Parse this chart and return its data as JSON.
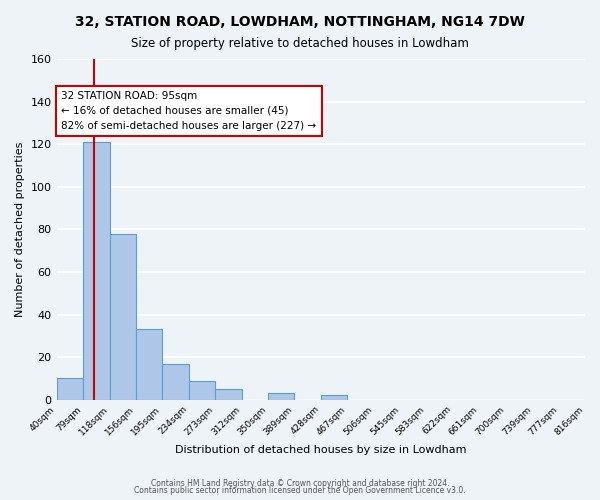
{
  "title": "32, STATION ROAD, LOWDHAM, NOTTINGHAM, NG14 7DW",
  "subtitle": "Size of property relative to detached houses in Lowdham",
  "xlabel": "Distribution of detached houses by size in Lowdham",
  "ylabel": "Number of detached properties",
  "bar_color": "#aec6e8",
  "bar_edge_color": "#5a9fd4",
  "background_color": "#eef3f8",
  "grid_color": "#ffffff",
  "bin_edges": [
    40,
    79,
    118,
    156,
    195,
    234,
    273,
    312,
    350,
    389,
    428,
    467,
    506,
    545,
    583,
    622,
    661,
    700,
    739,
    777,
    816
  ],
  "bin_labels": [
    "40sqm",
    "79sqm",
    "118sqm",
    "156sqm",
    "195sqm",
    "234sqm",
    "273sqm",
    "312sqm",
    "350sqm",
    "389sqm",
    "428sqm",
    "467sqm",
    "506sqm",
    "545sqm",
    "583sqm",
    "622sqm",
    "661sqm",
    "700sqm",
    "739sqm",
    "777sqm",
    "816sqm"
  ],
  "counts": [
    10,
    121,
    78,
    33,
    17,
    9,
    5,
    0,
    3,
    0,
    2,
    0,
    0,
    0,
    0,
    0,
    0,
    0,
    0,
    0
  ],
  "ylim": [
    0,
    160
  ],
  "yticks": [
    0,
    20,
    40,
    60,
    80,
    100,
    120,
    140,
    160
  ],
  "property_value": 95,
  "red_line_x": 95,
  "annotation_title": "32 STATION ROAD: 95sqm",
  "annotation_line1": "← 16% of detached houses are smaller (45)",
  "annotation_line2": "82% of semi-detached houses are larger (227) →",
  "annotation_box_color": "#ffffff",
  "annotation_edge_color": "#cc0000",
  "footer1": "Contains HM Land Registry data © Crown copyright and database right 2024.",
  "footer2": "Contains public sector information licensed under the Open Government Licence v3.0."
}
